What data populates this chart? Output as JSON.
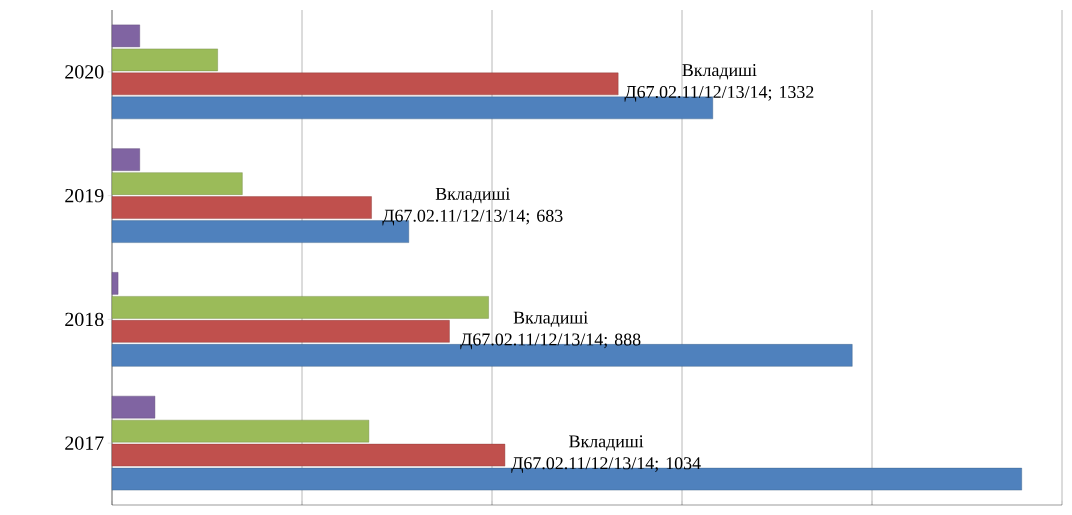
{
  "chart_data": {
    "type": "bar",
    "orientation": "horizontal",
    "categories": [
      "2020",
      "2019",
      "2018",
      "2017"
    ],
    "series": [
      {
        "color": "#4f81bd",
        "values": [
          1581,
          781,
          1948,
          2394
        ]
      },
      {
        "color": "#c0504d",
        "values": [
          1332,
          683,
          888,
          1034
        ],
        "value_labels": [
          "Вкладиші Д67.02.11/12/13/14; 1332",
          "Вкладиші Д67.02.11/12/13/14; 683",
          "Вкладиші Д67.02.11/12/13/14; 888",
          "Вкладиші Д67.02.11/12/13/14; 1034"
        ]
      },
      {
        "color": "#9bbb59",
        "values": [
          278,
          343,
          991,
          676
        ]
      },
      {
        "color": "#8064a2",
        "values": [
          73,
          73,
          16,
          113
        ]
      }
    ],
    "xlim": [
      0,
      2500
    ],
    "xticks": [
      {
        "value": 0,
        "label": null
      },
      {
        "value": 500,
        "label": null
      },
      {
        "value": 1000,
        "label": null
      },
      {
        "value": 1500,
        "label": null
      },
      {
        "value": 2000,
        "label": null
      },
      {
        "value": 2500,
        "label": null
      }
    ],
    "tick_labels": "y",
    "grid": "x"
  }
}
